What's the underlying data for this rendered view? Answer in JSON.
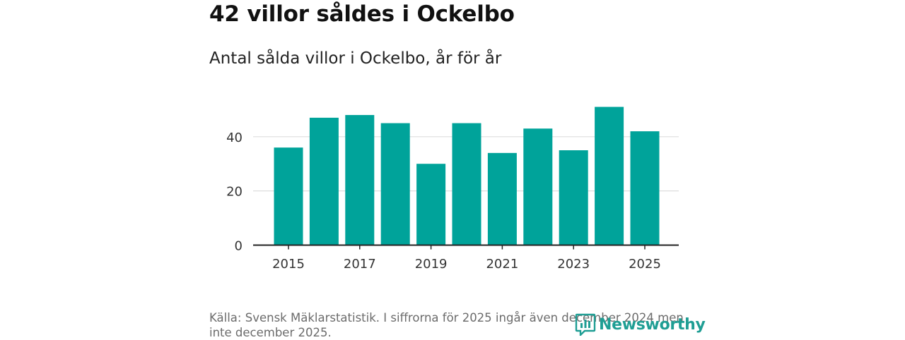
{
  "chart_data": {
    "type": "bar",
    "title": "42 villor såldes i Ockelbo",
    "subtitle": "Antal sålda villor i Ockelbo, år för år",
    "categories": [
      "2015",
      "2016",
      "2017",
      "2018",
      "2019",
      "2020",
      "2021",
      "2022",
      "2023",
      "2024",
      "2025"
    ],
    "values": [
      36,
      47,
      48,
      45,
      30,
      45,
      34,
      43,
      35,
      51,
      42
    ],
    "x_tick_labels": [
      "2015",
      "2017",
      "2019",
      "2021",
      "2023",
      "2025"
    ],
    "y_ticks": [
      0,
      20,
      40
    ],
    "ylim": [
      0,
      54
    ],
    "xlabel": "",
    "ylabel": "",
    "grid": true,
    "bar_color": "#00a39a"
  },
  "source": "Källa: Svensk Mäklarstatistik. I siffrorna för 2025 ingår även december 2024 men inte december 2025.",
  "logo": {
    "text": "Newsworthy",
    "icon": "bar-chart-speech-icon",
    "color": "#1f9e94"
  }
}
